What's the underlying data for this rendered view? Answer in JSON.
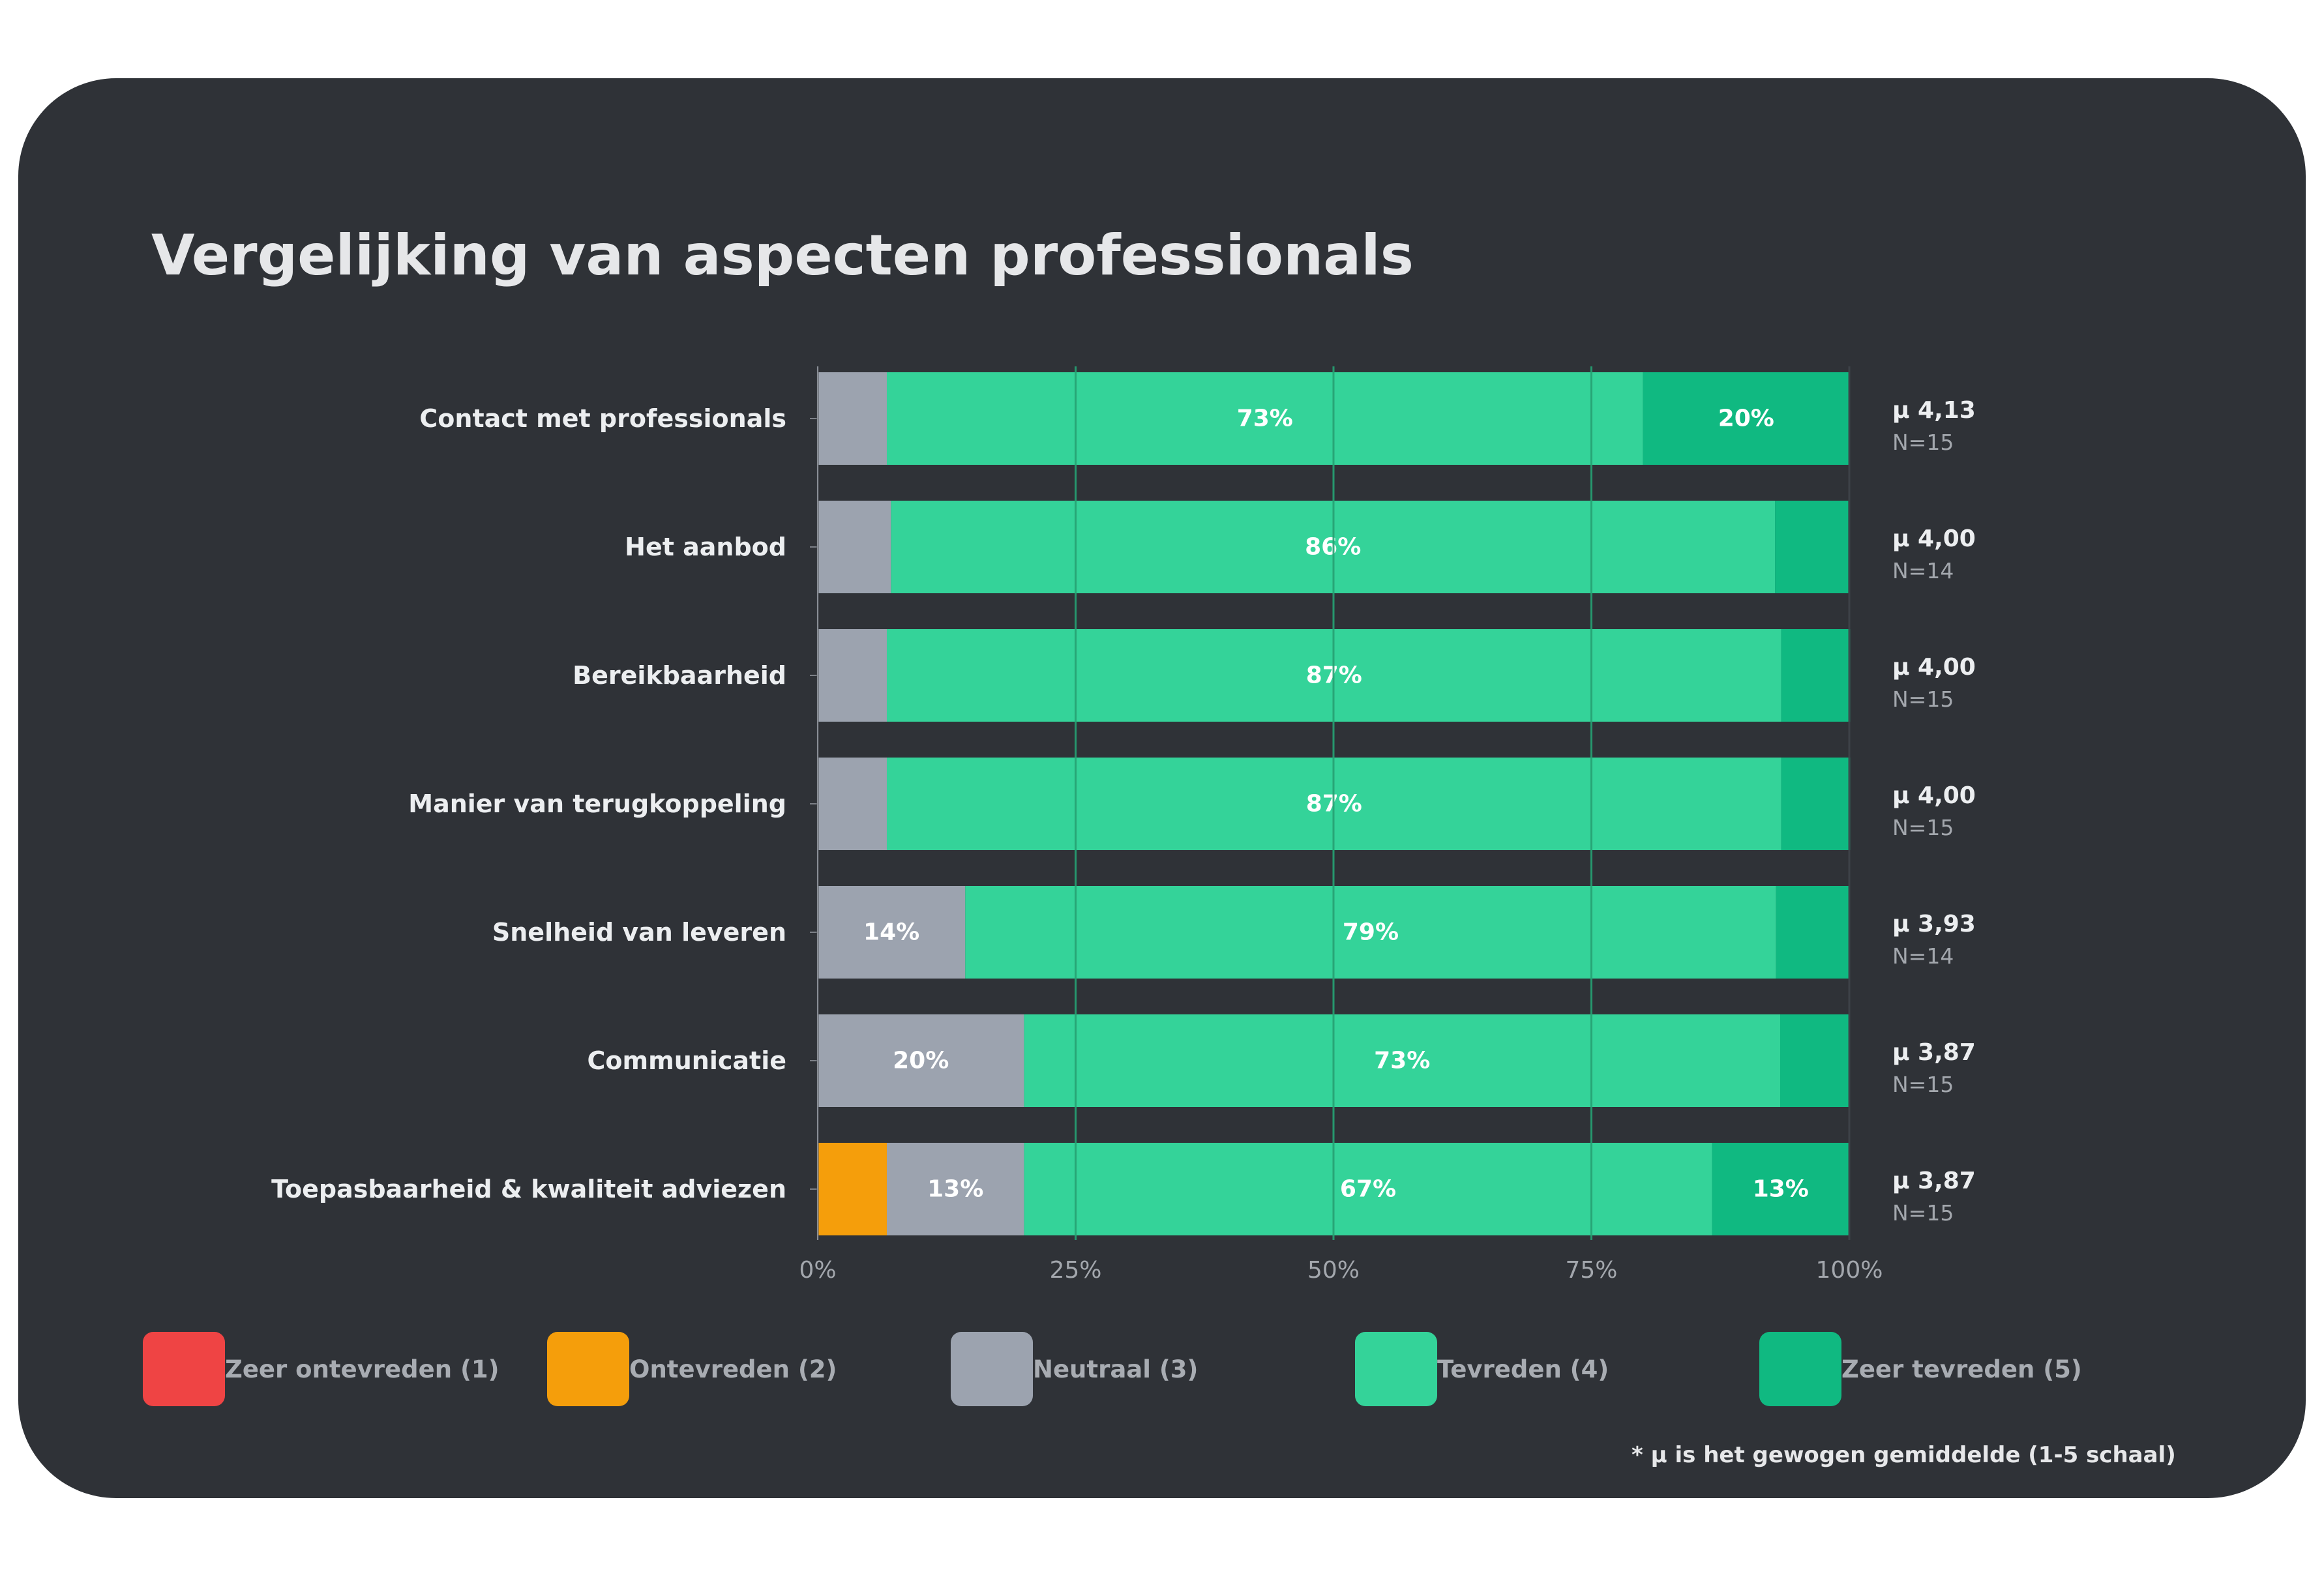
{
  "title": "Vergelijking van aspecten professionals",
  "footnote": "* μ is het gewogen gemiddelde (1-5 schaal)",
  "colors": {
    "zeer_ontevreden": "#ef4444",
    "ontevreden": "#f59e0b",
    "neutraal": "#9ca3af",
    "tevreden": "#34d399",
    "zeer_tevreden": "#10b981",
    "background": "#2f3237"
  },
  "legend": [
    {
      "label": "Zeer ontevreden (1)",
      "color": "#ef4444"
    },
    {
      "label": "Ontevreden (2)",
      "color": "#f59e0b"
    },
    {
      "label": "Neutraal (3)",
      "color": "#9ca3af"
    },
    {
      "label": "Tevreden (4)",
      "color": "#34d399"
    },
    {
      "label": "Zeer tevreden (5)",
      "color": "#10b981"
    }
  ],
  "chart_data": {
    "type": "bar",
    "orientation": "horizontal",
    "stacked": "100%",
    "categories": [
      "Contact met professionals",
      "Het aanbod",
      "Bereikbaarheid",
      "Manier van terugkoppeling",
      "Snelheid van leveren",
      "Communicatie",
      "Toepasbaarheid & kwaliteit adviezen"
    ],
    "series": [
      {
        "name": "Zeer ontevreden (1)",
        "color": "#ef4444",
        "values": [
          0,
          0,
          0,
          0,
          0,
          0,
          0
        ],
        "labels": [
          "",
          "",
          "",
          "",
          "",
          "",
          ""
        ]
      },
      {
        "name": "Ontevreden (2)",
        "color": "#f59e0b",
        "values": [
          0,
          0,
          0,
          0,
          0,
          0,
          6.7
        ],
        "labels": [
          "",
          "",
          "",
          "",
          "",
          "",
          ""
        ]
      },
      {
        "name": "Neutraal (3)",
        "color": "#9ca3af",
        "values": [
          6.7,
          7.1,
          6.7,
          6.7,
          14.3,
          20,
          13.3
        ],
        "labels": [
          "",
          "",
          "",
          "",
          "14%",
          "20%",
          "13%"
        ]
      },
      {
        "name": "Tevreden (4)",
        "color": "#34d399",
        "values": [
          73.3,
          85.7,
          86.7,
          86.7,
          78.6,
          73.3,
          66.7
        ],
        "labels": [
          "73%",
          "86%",
          "87%",
          "87%",
          "79%",
          "73%",
          "67%"
        ]
      },
      {
        "name": "Zeer tevreden (5)",
        "color": "#10b981",
        "values": [
          20,
          7.1,
          6.7,
          6.7,
          7.1,
          6.7,
          13.3
        ],
        "labels": [
          "20%",
          "",
          "",
          "",
          "",
          "",
          "13%"
        ]
      }
    ],
    "means": [
      "μ 4,13",
      "μ 4,00",
      "μ 4,00",
      "μ 4,00",
      "μ 3,93",
      "μ 3,87",
      "μ 3,87"
    ],
    "n": [
      "N=15",
      "N=14",
      "N=15",
      "N=15",
      "N=14",
      "N=15",
      "N=15"
    ],
    "xlim": [
      0,
      100
    ],
    "xticks": [
      0,
      25,
      50,
      75,
      100
    ],
    "xtick_labels": [
      "0%",
      "25%",
      "50%",
      "75%",
      "100%"
    ],
    "grid": true,
    "legend_position": "bottom"
  }
}
